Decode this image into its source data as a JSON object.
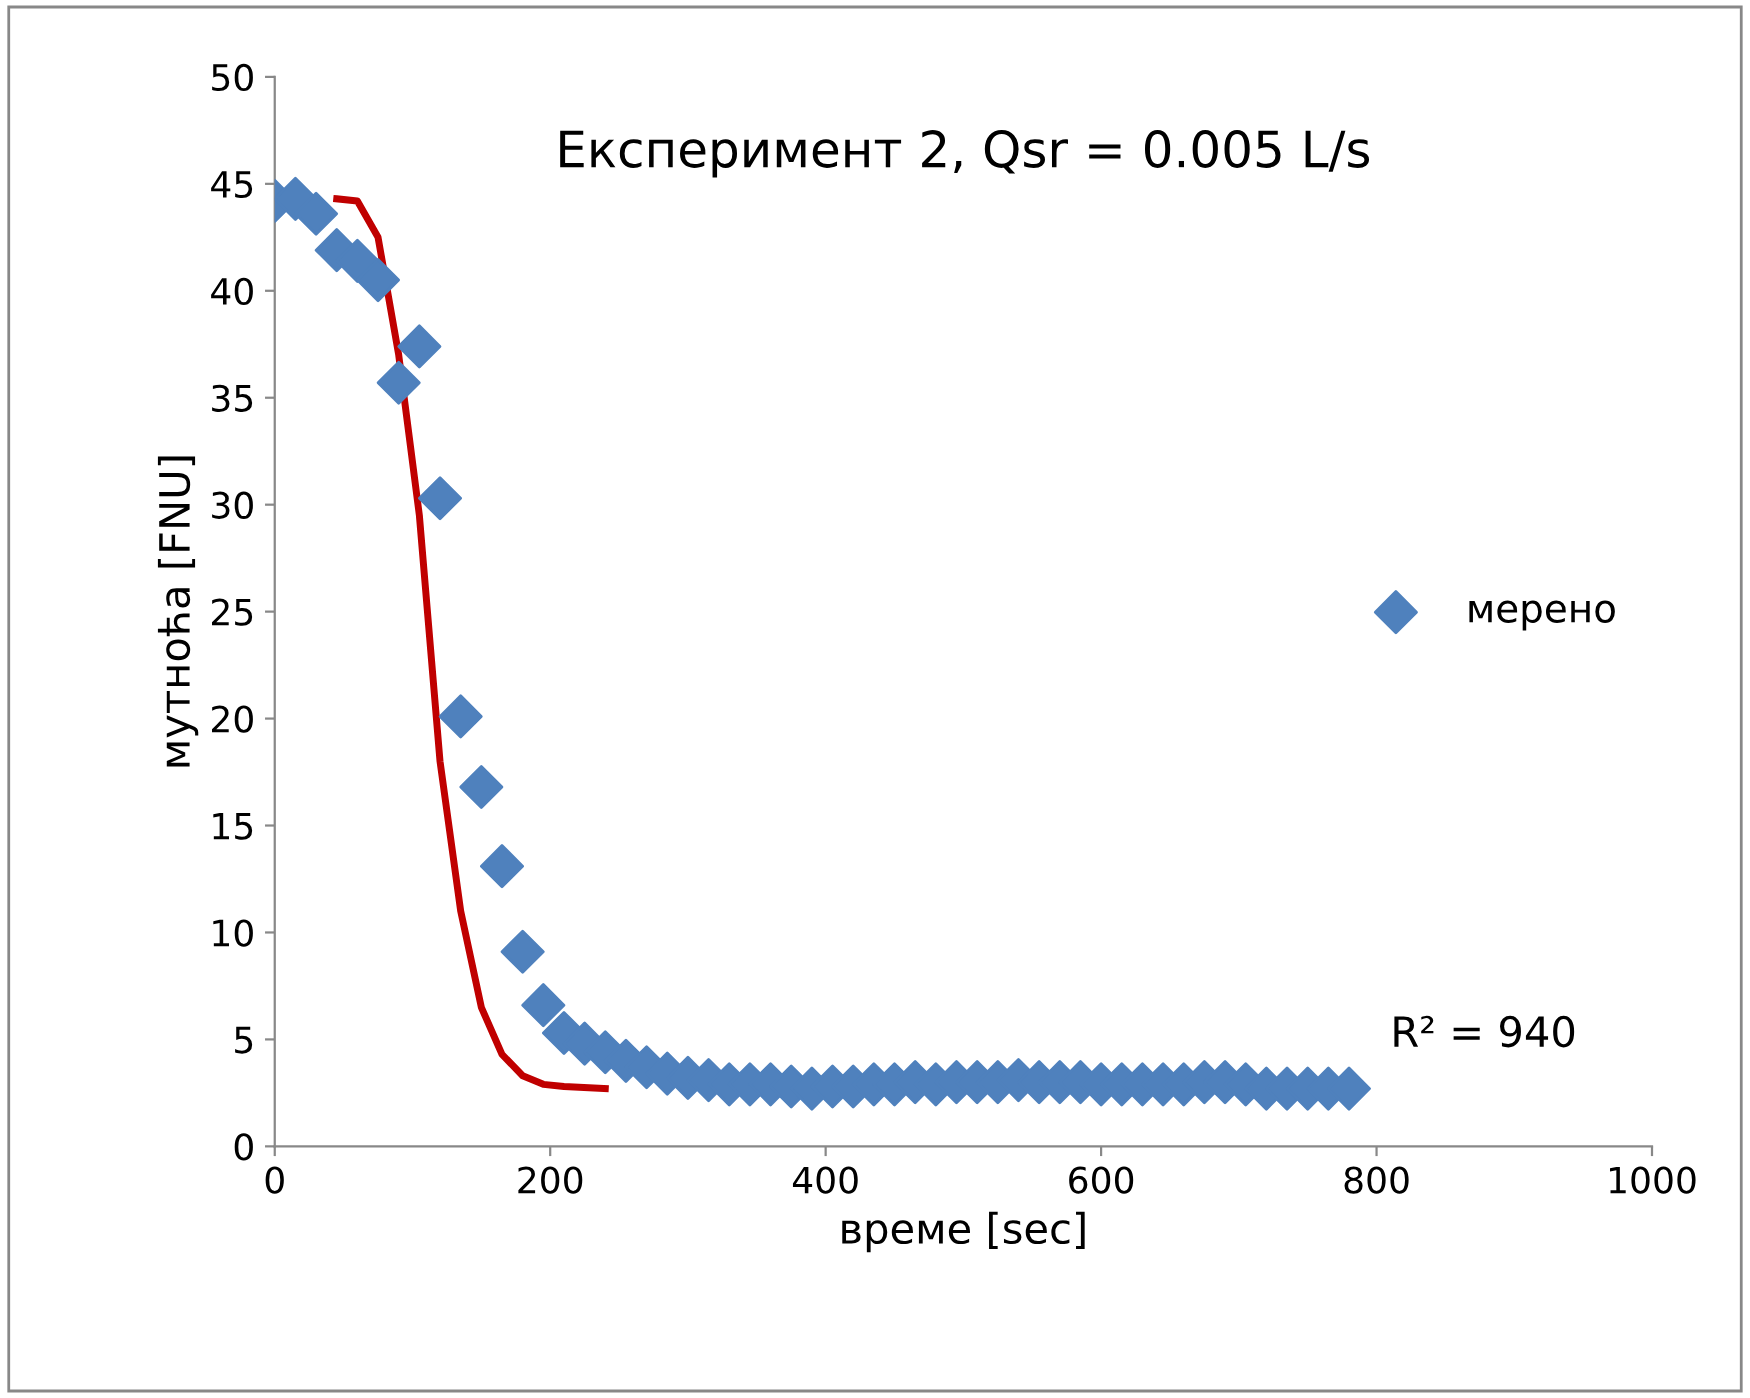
{
  "chart_data": {
    "type": "scatter",
    "title": "Експеримент 2, Qsr = 0.005 L/s",
    "xlabel": "време [sec]",
    "ylabel": "мутноћа [FNU]",
    "xlim": [
      0,
      1000
    ],
    "xticks": [
      0,
      200,
      400,
      600,
      800,
      1000
    ],
    "ylim": [
      0,
      50
    ],
    "yticks": [
      0,
      5,
      10,
      15,
      20,
      25,
      30,
      35,
      40,
      45,
      50
    ],
    "grid": false,
    "legend": "right",
    "annotations": [
      "R² = 940"
    ],
    "series": [
      {
        "name": "мерено",
        "marker": "diamond",
        "color": "#4f81bd",
        "x": [
          0,
          15,
          30,
          45,
          60,
          75,
          90,
          105,
          120,
          135,
          150,
          165,
          180,
          195,
          210,
          225,
          240,
          255,
          270,
          285,
          300,
          315,
          330,
          345,
          360,
          375,
          390,
          405,
          420,
          435,
          450,
          465,
          480,
          495,
          510,
          525,
          540,
          555,
          570,
          585,
          600,
          615,
          630,
          645,
          660,
          675,
          690,
          705,
          720,
          735,
          750,
          765,
          780
        ],
        "values": [
          44.2,
          44.3,
          43.6,
          41.9,
          41.4,
          40.5,
          35.7,
          37.4,
          30.3,
          20.1,
          16.8,
          13.1,
          9.1,
          6.6,
          5.3,
          4.8,
          4.4,
          4.0,
          3.7,
          3.4,
          3.2,
          3.1,
          2.9,
          2.9,
          2.9,
          2.8,
          2.7,
          2.8,
          2.8,
          2.9,
          2.9,
          3.0,
          2.9,
          3.0,
          3.0,
          3.0,
          3.1,
          3.0,
          3.0,
          3.0,
          2.9,
          2.9,
          2.9,
          2.9,
          2.9,
          3.0,
          3.0,
          2.9,
          2.7,
          2.7,
          2.7,
          2.7,
          2.7
        ]
      },
      {
        "type": "line",
        "color": "#c00000",
        "x": [
          45,
          60,
          75,
          90,
          105,
          120,
          135,
          150,
          165,
          180,
          195,
          210,
          240
        ],
        "values": [
          44.3,
          44.2,
          42.5,
          37,
          29.5,
          18,
          11,
          6.5,
          4.3,
          3.3,
          2.9,
          2.8,
          2.7
        ]
      }
    ]
  }
}
